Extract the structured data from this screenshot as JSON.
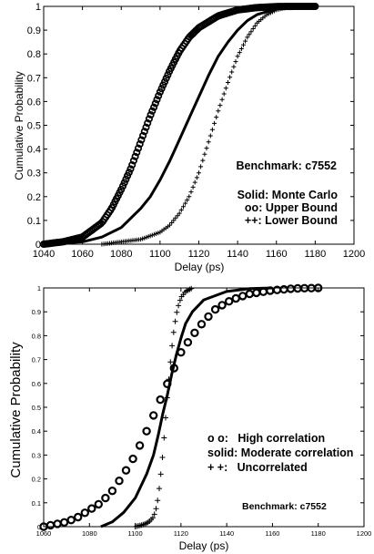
{
  "chart_data": [
    {
      "type": "line",
      "title": "",
      "xlabel": "Delay (ps)",
      "ylabel": "Cumulative Probability",
      "xlim": [
        1040,
        1200
      ],
      "ylim": [
        0,
        1
      ],
      "xticks": [
        "1040",
        "1060",
        "1080",
        "1100",
        "1120",
        "1140",
        "1160",
        "1180",
        "1200"
      ],
      "yticks": [
        "0",
        "0.1",
        "0.2",
        "0.3",
        "0.4",
        "0.5",
        "0.6",
        "0.7",
        "0.8",
        "0.9",
        "1"
      ],
      "grid": false,
      "annotations": [
        "Benchmark: c7552",
        "Solid: Monte Carlo",
        "oo: Upper Bound",
        "++: Lower Bound"
      ],
      "series": [
        {
          "marker": "circle",
          "x": [
            1040,
            1050,
            1060,
            1070,
            1075,
            1080,
            1085,
            1090,
            1095,
            1100,
            1105,
            1110,
            1115,
            1120,
            1130,
            1140,
            1150,
            1160,
            1170,
            1180
          ],
          "y": [
            0,
            0.01,
            0.03,
            0.09,
            0.15,
            0.23,
            0.32,
            0.43,
            0.54,
            0.64,
            0.73,
            0.81,
            0.87,
            0.91,
            0.96,
            0.985,
            0.995,
            0.999,
            1,
            1
          ]
        },
        {
          "marker": "solid",
          "x": [
            1040,
            1060,
            1070,
            1080,
            1090,
            1095,
            1100,
            1105,
            1110,
            1115,
            1120,
            1125,
            1130,
            1135,
            1140,
            1145,
            1150,
            1160,
            1170,
            1180
          ],
          "y": [
            0,
            0.01,
            0.03,
            0.07,
            0.15,
            0.2,
            0.27,
            0.35,
            0.44,
            0.53,
            0.62,
            0.71,
            0.79,
            0.85,
            0.9,
            0.94,
            0.965,
            0.99,
            0.998,
            1
          ]
        },
        {
          "marker": "plus",
          "x": [
            1070,
            1080,
            1090,
            1100,
            1105,
            1110,
            1115,
            1120,
            1125,
            1130,
            1135,
            1140,
            1145,
            1150,
            1155,
            1160,
            1165,
            1170,
            1180
          ],
          "y": [
            0,
            0.01,
            0.02,
            0.05,
            0.08,
            0.13,
            0.2,
            0.3,
            0.43,
            0.56,
            0.68,
            0.79,
            0.87,
            0.93,
            0.965,
            0.985,
            0.995,
            1,
            1
          ]
        }
      ]
    },
    {
      "type": "line",
      "title": "",
      "xlabel": "Delay (ps)",
      "ylabel": "Cumulative Probability",
      "xlim": [
        1060,
        1200
      ],
      "ylim": [
        0,
        1
      ],
      "xticks": [
        "1060",
        "1080",
        "1100",
        "1120",
        "1140",
        "1160",
        "1180",
        "1200"
      ],
      "yticks": [
        "0",
        "0.1",
        "0.2",
        "0.3",
        "0.4",
        "0.5",
        "0.6",
        "0.7",
        "0.8",
        "0.9",
        "1"
      ],
      "grid": false,
      "annotations": [
        "o o:   High correlation",
        "solid: Moderate correlation",
        "+ +:   Uncorrelated",
        "Benchmark: c7552"
      ],
      "series": [
        {
          "marker": "circle",
          "x": [
            1060,
            1065,
            1070,
            1075,
            1080,
            1085,
            1090,
            1095,
            1100,
            1105,
            1110,
            1115,
            1120,
            1125,
            1130,
            1135,
            1140,
            1145,
            1150,
            1160,
            1170,
            1180
          ],
          "y": [
            0,
            0.01,
            0.02,
            0.04,
            0.07,
            0.1,
            0.15,
            0.22,
            0.3,
            0.4,
            0.51,
            0.62,
            0.73,
            0.8,
            0.86,
            0.91,
            0.94,
            0.96,
            0.975,
            0.99,
            0.998,
            1
          ]
        },
        {
          "marker": "solid",
          "x": [
            1085,
            1090,
            1095,
            1100,
            1105,
            1108,
            1110,
            1112,
            1114,
            1116,
            1118,
            1120,
            1122,
            1125,
            1130,
            1140,
            1150,
            1160
          ],
          "y": [
            0,
            0.02,
            0.06,
            0.12,
            0.22,
            0.3,
            0.38,
            0.47,
            0.55,
            0.64,
            0.72,
            0.79,
            0.85,
            0.9,
            0.95,
            0.985,
            0.997,
            1
          ]
        },
        {
          "marker": "plus",
          "x": [
            1100,
            1104,
            1106,
            1108,
            1109,
            1110,
            1111,
            1112,
            1113,
            1114,
            1115,
            1116,
            1117,
            1118,
            1119,
            1120,
            1122,
            1125
          ],
          "y": [
            0,
            0.01,
            0.02,
            0.04,
            0.07,
            0.12,
            0.2,
            0.3,
            0.42,
            0.54,
            0.65,
            0.75,
            0.83,
            0.89,
            0.93,
            0.96,
            0.985,
            1
          ]
        }
      ]
    }
  ]
}
